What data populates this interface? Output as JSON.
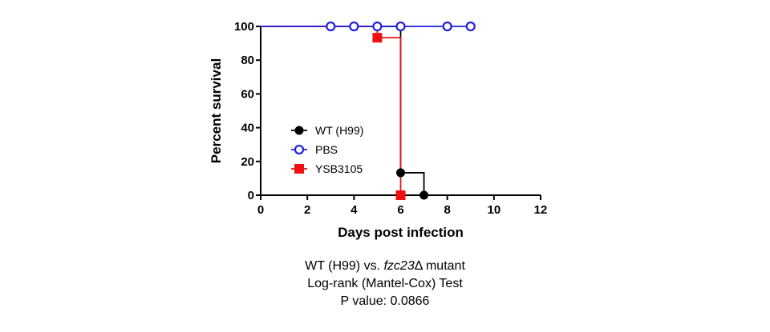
{
  "chart_data": {
    "type": "line",
    "subtype": "kaplan-meier step",
    "xlabel": "Days post infection",
    "ylabel": "Percent survival",
    "xlim": [
      0,
      12
    ],
    "ylim": [
      0,
      100
    ],
    "xticks": [
      0,
      2,
      4,
      6,
      8,
      10,
      12
    ],
    "yticks": [
      0,
      20,
      40,
      60,
      80,
      100
    ],
    "grid": false,
    "legend_position": "lower-left inside",
    "series": [
      {
        "name": "WT (H99)",
        "color": "#000000",
        "marker": "filled-circle",
        "steps": [
          [
            0,
            100
          ],
          [
            6,
            100
          ],
          [
            6,
            13.3
          ],
          [
            7,
            13.3
          ],
          [
            7,
            0
          ]
        ],
        "markers": [
          [
            6,
            13.3
          ],
          [
            7,
            0
          ]
        ]
      },
      {
        "name": "PBS",
        "color": "#1f1fe0",
        "marker": "open-circle",
        "steps": [
          [
            0,
            100
          ],
          [
            9,
            100
          ]
        ],
        "markers": [
          [
            3,
            100
          ],
          [
            4,
            100
          ],
          [
            5,
            100
          ],
          [
            6,
            100
          ],
          [
            8,
            100
          ],
          [
            9,
            100
          ]
        ]
      },
      {
        "name": "YSB3105",
        "color": "#ee1111",
        "marker": "filled-square",
        "steps": [
          [
            0,
            100
          ],
          [
            5,
            100
          ],
          [
            5,
            93.3
          ],
          [
            6,
            93.3
          ],
          [
            6,
            0
          ]
        ],
        "markers": [
          [
            5,
            93.3
          ],
          [
            6,
            0
          ]
        ]
      }
    ]
  },
  "caption": {
    "line1_prefix": "WT (H99) vs. ",
    "line1_italic": "fzc23",
    "line1_suffix": "Δ mutant",
    "line2": "Log-rank (Mantel-Cox) Test",
    "line3": "P value: 0.0866"
  }
}
